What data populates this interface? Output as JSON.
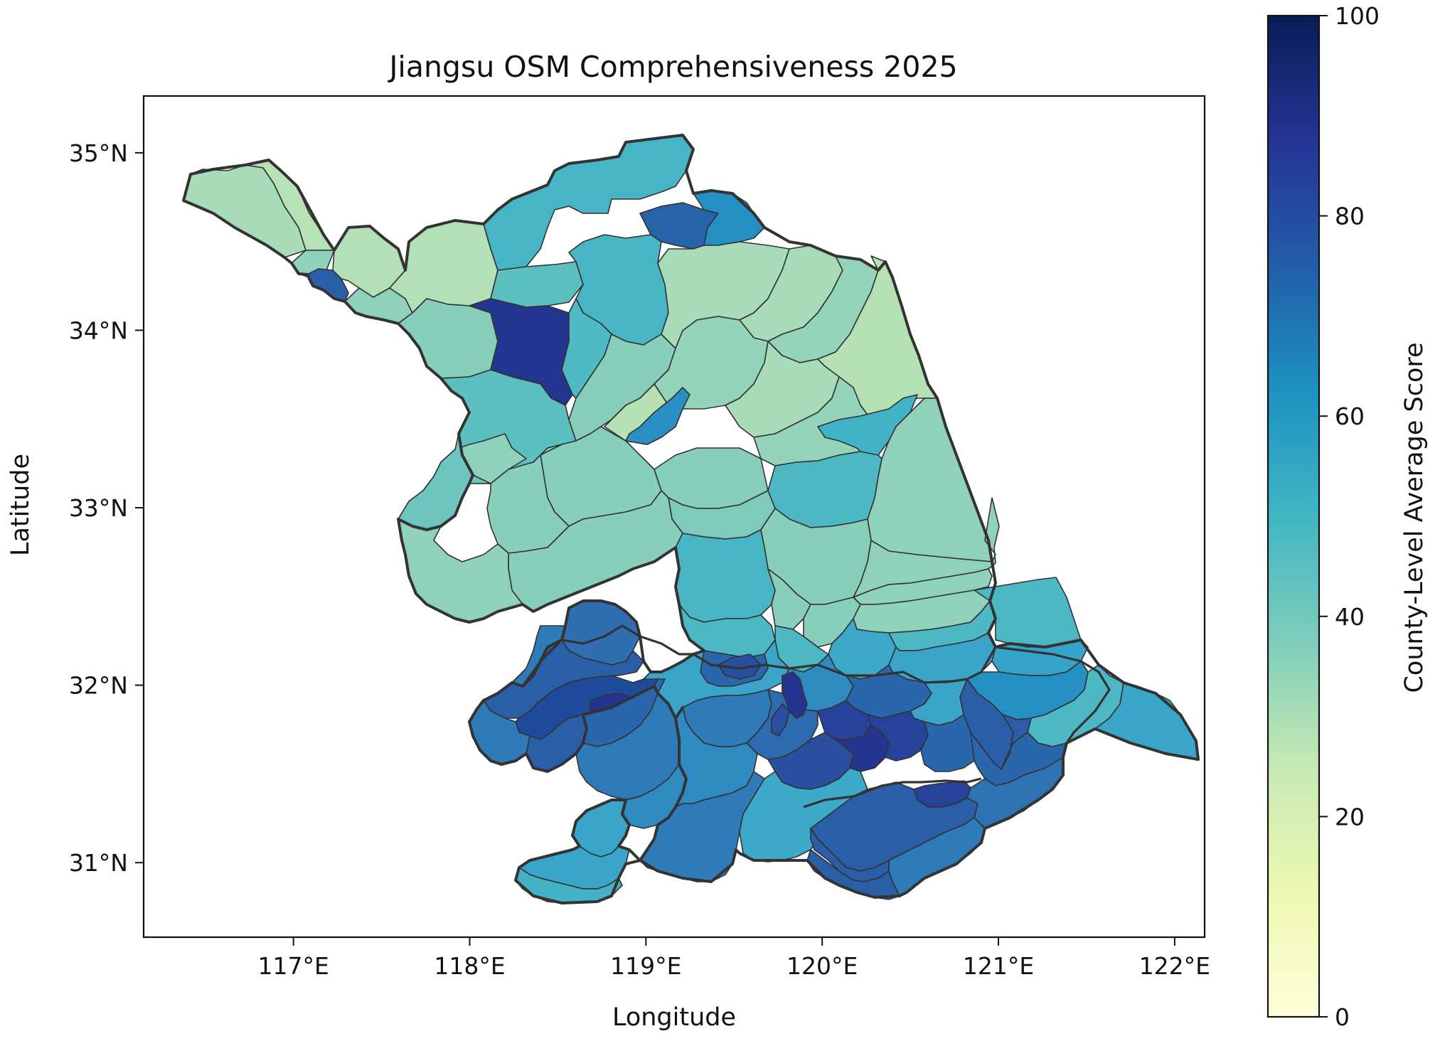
{
  "title": "Jiangsu OSM Comprehensiveness 2025",
  "map": {
    "xlabel": "Longitude",
    "ylabel": "Latitude",
    "x_ticks": [
      "117°E",
      "118°E",
      "119°E",
      "120°E",
      "121°E",
      "122°E"
    ],
    "y_ticks": [
      "31°N",
      "32°N",
      "33°N",
      "34°N",
      "35°N"
    ],
    "x_tick_values": [
      117,
      118,
      119,
      120,
      121,
      122
    ],
    "y_tick_values": [
      31,
      32,
      33,
      34,
      35
    ],
    "xlim": [
      116.15,
      122.17
    ],
    "ylim": [
      30.58,
      35.32
    ],
    "colormap": "YlGnBu",
    "background": "#ffffff",
    "outline_color": "#333333"
  },
  "colorbar": {
    "label": "County-Level Average Score",
    "ticks": [
      "0",
      "20",
      "40",
      "60",
      "80",
      "100"
    ],
    "tick_values": [
      0,
      20,
      40,
      60,
      80,
      100
    ],
    "range": [
      0,
      100
    ]
  }
}
